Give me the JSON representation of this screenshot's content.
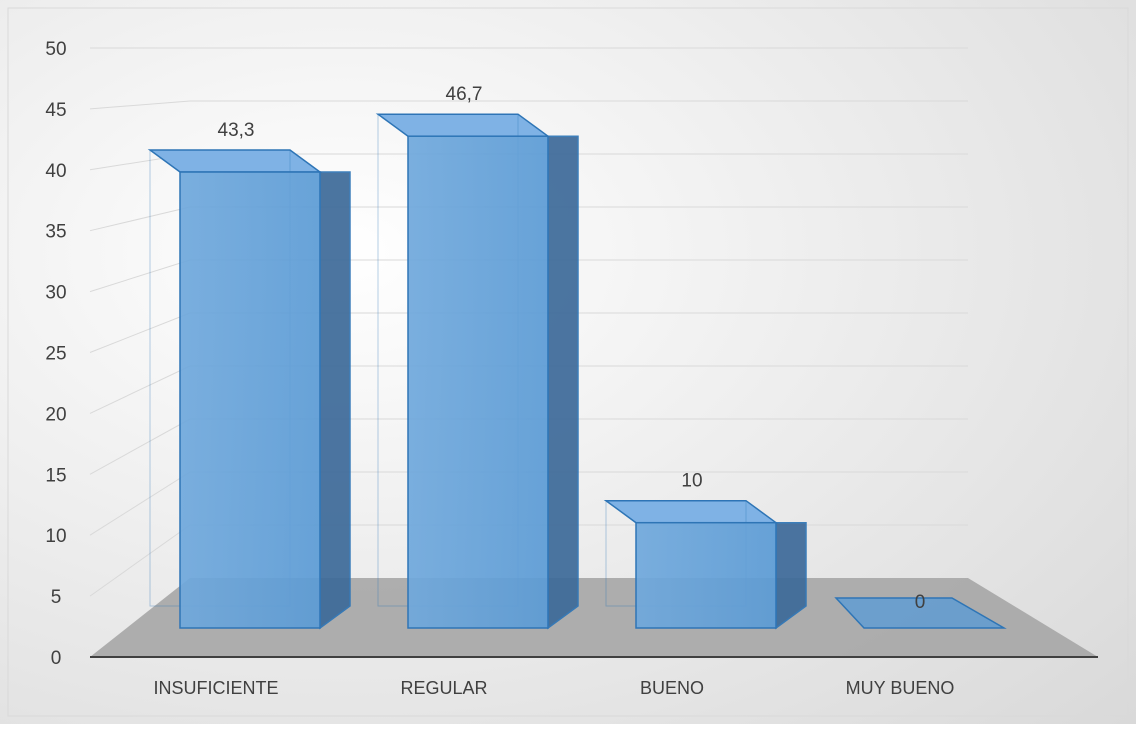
{
  "chart_data": {
    "type": "bar",
    "title": "",
    "xlabel": "",
    "ylabel": "",
    "categories": [
      "INSUFICIENTE",
      "REGULAR",
      "BUENO",
      "MUY BUENO"
    ],
    "series": [
      {
        "values": [
          43.3,
          46.7,
          10,
          0
        ]
      }
    ],
    "data_labels": [
      "43,3",
      "46,7",
      "10",
      "0"
    ],
    "ylim": [
      0,
      50
    ],
    "yticks": [
      "0",
      "5",
      "10",
      "15",
      "20",
      "25",
      "30",
      "35",
      "40",
      "45",
      "50"
    ],
    "grid": true,
    "legend": "none",
    "style": "3d-column",
    "colors": {
      "bar_front": "#5b9bd5",
      "bar_edge": "#2e75b6",
      "bar_side": "#3d6a99",
      "floor": "#a6a6a6",
      "background_light": "#ffffff",
      "background_dark": "#d9d9d9",
      "gridline": "#d9d9d9",
      "axis_line": "#404040",
      "text": "#404040"
    }
  }
}
